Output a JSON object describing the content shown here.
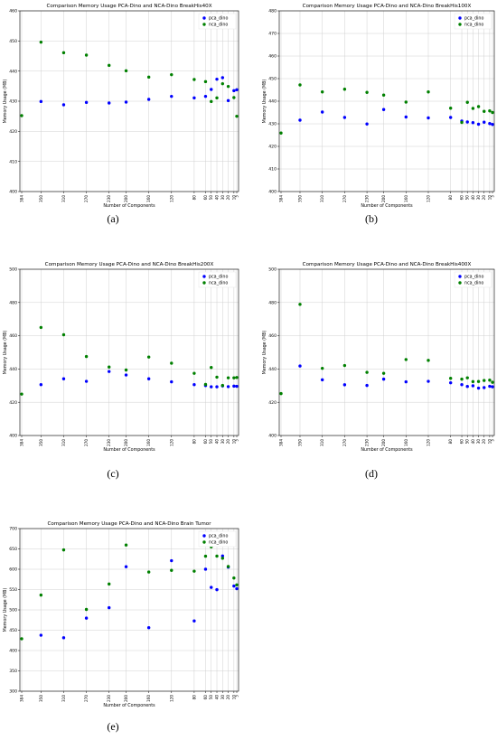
{
  "figure": {
    "panel_labels": [
      "(a)",
      "(b)",
      "(c)",
      "(d)",
      "(e)"
    ]
  },
  "chart_data": [
    {
      "type": "scatter",
      "title": "Comparison Memory Usage PCA-Dino and NCA-Dino BreakHis40X",
      "xlabel": "Number of Components",
      "ylabel": "Memory Usage (MB)",
      "x": [
        384,
        350,
        310,
        270,
        230,
        200,
        160,
        120,
        80,
        60,
        50,
        40,
        30,
        20,
        10,
        5
      ],
      "x_ticks": [
        "384",
        "350",
        "310",
        "270",
        "230",
        "200",
        "160",
        "120",
        "80",
        "60",
        "50",
        "40",
        "30",
        "20",
        "10",
        "5"
      ],
      "x_axis": "inverted",
      "ylim": [
        400,
        460
      ],
      "y_ticks": [
        400,
        410,
        420,
        430,
        440,
        450,
        460
      ],
      "grid": true,
      "legend_position": "top-right",
      "series": [
        {
          "name": "pca_dino",
          "color": "#0000ff",
          "values": [
            null,
            429.9,
            428.8,
            429.6,
            429.4,
            429.7,
            430.6,
            431.6,
            431.1,
            431.6,
            433.9,
            437.3,
            437.8,
            430.2,
            433.5,
            433.8
          ]
        },
        {
          "name": "nca_dino",
          "color": "#008000",
          "values": [
            425.2,
            449.6,
            446.1,
            445.3,
            441.9,
            440.1,
            438.0,
            438.8,
            437.2,
            436.5,
            429.9,
            431.1,
            435.8,
            434.9,
            431.2,
            425.0
          ]
        }
      ]
    },
    {
      "type": "scatter",
      "title": "Comparison Memory Usage PCA-Dino and NCA-Dino BreakHis100X",
      "xlabel": "Number of Components",
      "ylabel": "Memory Usage (MB)",
      "x": [
        384,
        350,
        310,
        270,
        230,
        200,
        160,
        120,
        80,
        60,
        50,
        40,
        30,
        20,
        10,
        5
      ],
      "x_ticks": [
        "384",
        "350",
        "310",
        "270",
        "230",
        "200",
        "160",
        "120",
        "80",
        "60",
        "50",
        "40",
        "30",
        "20",
        "10",
        "5"
      ],
      "x_axis": "inverted",
      "ylim": [
        400,
        480
      ],
      "y_ticks": [
        400,
        410,
        420,
        430,
        440,
        450,
        460,
        470,
        480
      ],
      "grid": true,
      "legend_position": "top-right",
      "series": [
        {
          "name": "pca_dino",
          "color": "#0000ff",
          "values": [
            null,
            431.6,
            435.2,
            432.8,
            429.9,
            436.3,
            433.0,
            432.6,
            432.8,
            431.2,
            430.8,
            430.5,
            429.8,
            430.7,
            430.1,
            429.7
          ]
        },
        {
          "name": "nca_dino",
          "color": "#008000",
          "values": [
            425.9,
            447.2,
            444.1,
            445.3,
            443.9,
            442.7,
            439.6,
            444.1,
            436.9,
            430.6,
            439.5,
            436.8,
            437.6,
            435.5,
            435.7,
            435.0
          ]
        }
      ]
    },
    {
      "type": "scatter",
      "title": "Comparison Memory Usage PCA-Dino and NCA-Dino BreakHis200X",
      "xlabel": "Number of Components",
      "ylabel": "Memory Usage (MB)",
      "x": [
        384,
        350,
        310,
        270,
        230,
        200,
        160,
        120,
        80,
        60,
        50,
        40,
        30,
        20,
        10,
        5
      ],
      "x_ticks": [
        "384",
        "350",
        "310",
        "270",
        "230",
        "200",
        "160",
        "120",
        "80",
        "60",
        "50",
        "40",
        "30",
        "20",
        "10",
        "5"
      ],
      "x_axis": "inverted",
      "ylim": [
        400,
        500
      ],
      "y_ticks": [
        400,
        420,
        440,
        460,
        480,
        500
      ],
      "grid": true,
      "legend_position": "top-right",
      "series": [
        {
          "name": "pca_dino",
          "color": "#0000ff",
          "values": [
            null,
            430.6,
            434.1,
            432.6,
            438.5,
            436.4,
            434.1,
            432.3,
            430.6,
            430.0,
            429.3,
            429.3,
            429.8,
            429.4,
            429.7,
            429.6
          ]
        },
        {
          "name": "nca_dino",
          "color": "#008000",
          "values": [
            424.9,
            465.0,
            460.6,
            447.5,
            441.2,
            439.4,
            447.2,
            443.5,
            437.4,
            430.7,
            440.9,
            435.1,
            430.1,
            434.7,
            434.7,
            434.9
          ]
        }
      ]
    },
    {
      "type": "scatter",
      "title": "Comparison Memory Usage PCA-Dino and NCA-Dino BreakHis400X",
      "xlabel": "Number of Components",
      "ylabel": "Memory Usage (MB)",
      "x": [
        384,
        350,
        310,
        270,
        230,
        200,
        160,
        120,
        80,
        60,
        50,
        40,
        30,
        20,
        10,
        5
      ],
      "x_ticks": [
        "384",
        "350",
        "310",
        "270",
        "230",
        "200",
        "160",
        "120",
        "80",
        "60",
        "50",
        "40",
        "30",
        "20",
        "10",
        "5"
      ],
      "x_axis": "inverted",
      "ylim": [
        400,
        500
      ],
      "y_ticks": [
        400,
        420,
        440,
        460,
        480,
        500
      ],
      "grid": true,
      "legend_position": "top-right",
      "series": [
        {
          "name": "pca_dino",
          "color": "#0000ff",
          "values": [
            null,
            441.8,
            433.5,
            430.5,
            430.1,
            433.9,
            432.3,
            432.6,
            431.7,
            430.6,
            429.5,
            429.9,
            428.5,
            428.8,
            429.6,
            429.3
          ]
        },
        {
          "name": "nca_dino",
          "color": "#008000",
          "values": [
            425.2,
            478.9,
            440.4,
            442.1,
            438.0,
            437.4,
            445.7,
            445.2,
            434.4,
            433.9,
            434.7,
            432.4,
            432.5,
            433.1,
            433.3,
            432.0
          ]
        }
      ]
    },
    {
      "type": "scatter",
      "title": "Comparison Memory Usage PCA-Dino and NCA-Dino Brain Tumor",
      "xlabel": "Number of Components",
      "ylabel": "Memory Usage (MB)",
      "x": [
        384,
        350,
        310,
        270,
        230,
        200,
        160,
        120,
        80,
        60,
        50,
        40,
        30,
        20,
        10,
        5
      ],
      "x_ticks": [
        "384",
        "350",
        "310",
        "270",
        "230",
        "200",
        "160",
        "120",
        "80",
        "60",
        "50",
        "40",
        "30",
        "20",
        "10",
        "5"
      ],
      "x_axis": "inverted",
      "ylim": [
        300,
        700
      ],
      "y_ticks": [
        300,
        350,
        400,
        450,
        500,
        550,
        600,
        650,
        700
      ],
      "grid": true,
      "legend_position": "top-right",
      "series": [
        {
          "name": "pca_dino",
          "color": "#0000ff",
          "values": [
            null,
            437.7,
            431.5,
            479.7,
            505.4,
            606.2,
            456.2,
            621.0,
            472.9,
            600.1,
            555.4,
            549.7,
            632.6,
            605.1,
            558.7,
            552.1
          ]
        },
        {
          "name": "nca_dino",
          "color": "#008000",
          "values": [
            429.0,
            536.4,
            647.5,
            501.1,
            563.6,
            659.5,
            593.1,
            597.3,
            595.2,
            632.0,
            655.1,
            632.3,
            627.0,
            606.8,
            578.4,
            561.6
          ]
        }
      ]
    }
  ]
}
